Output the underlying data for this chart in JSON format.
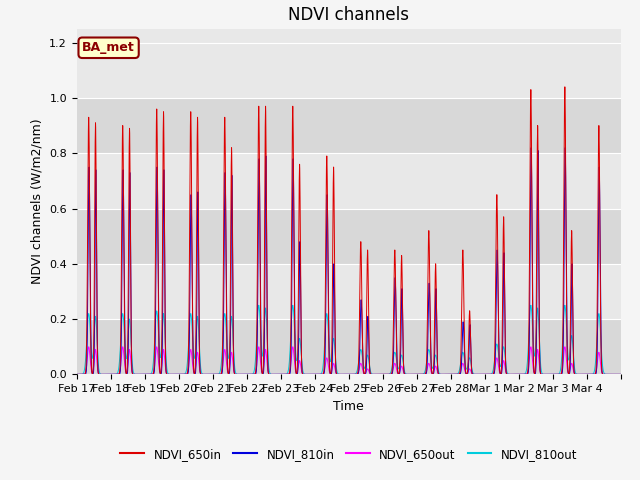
{
  "title": "NDVI channels",
  "ylabel": "NDVI channels (W/m2/nm)",
  "xlabel": "Time",
  "annotation": "BA_met",
  "ylim": [
    0,
    1.25
  ],
  "colors": {
    "NDVI_650in": "#dd0000",
    "NDVI_810in": "#0000dd",
    "NDVI_650out": "#ff00ff",
    "NDVI_810out": "#00ccdd"
  },
  "xtick_labels": [
    "Feb 17",
    "Feb 18",
    "Feb 19",
    "Feb 20",
    "Feb 21",
    "Feb 22",
    "Feb 23",
    "Feb 24",
    "Feb 25",
    "Feb 26",
    "Feb 27",
    "Feb 28",
    "Mar 1",
    "Mar 2",
    "Mar 3",
    "Mar 4"
  ],
  "background_color": "#e0e0e0",
  "band_colors": [
    "#d8d8d8",
    "#e8e8e8"
  ],
  "n_days": 16,
  "spike_peaks_650in": [
    0.93,
    0.9,
    0.96,
    0.95,
    0.93,
    0.97,
    0.97,
    0.79,
    0.48,
    0.45,
    0.52,
    0.45,
    0.65,
    1.03,
    1.04,
    0.9
  ],
  "spike_peaks_650in_2": [
    0.91,
    0.89,
    0.95,
    0.93,
    0.82,
    0.97,
    0.76,
    0.75,
    0.45,
    0.43,
    0.4,
    0.23,
    0.57,
    0.9,
    0.52,
    0.0
  ],
  "spike_peaks_810in": [
    0.75,
    0.74,
    0.75,
    0.65,
    0.73,
    0.78,
    0.78,
    0.65,
    0.27,
    0.35,
    0.33,
    0.19,
    0.45,
    0.82,
    0.82,
    0.75
  ],
  "spike_peaks_810in_2": [
    0.74,
    0.73,
    0.74,
    0.66,
    0.72,
    0.79,
    0.48,
    0.4,
    0.21,
    0.31,
    0.31,
    0.18,
    0.44,
    0.81,
    0.4,
    0.0
  ],
  "spike_peaks_650out": [
    0.1,
    0.1,
    0.1,
    0.09,
    0.09,
    0.1,
    0.1,
    0.06,
    0.04,
    0.04,
    0.04,
    0.04,
    0.06,
    0.1,
    0.1,
    0.08
  ],
  "spike_peaks_650out_2": [
    0.09,
    0.09,
    0.09,
    0.08,
    0.08,
    0.09,
    0.05,
    0.04,
    0.02,
    0.03,
    0.03,
    0.02,
    0.05,
    0.09,
    0.04,
    0.0
  ],
  "spike_peaks_810out": [
    0.22,
    0.22,
    0.23,
    0.22,
    0.22,
    0.25,
    0.25,
    0.22,
    0.09,
    0.08,
    0.09,
    0.08,
    0.11,
    0.25,
    0.25,
    0.22
  ],
  "spike_peaks_810out_2": [
    0.21,
    0.2,
    0.22,
    0.21,
    0.21,
    0.24,
    0.13,
    0.13,
    0.07,
    0.07,
    0.07,
    0.06,
    0.1,
    0.24,
    0.14,
    0.0
  ],
  "title_fontsize": 12,
  "axis_fontsize": 9,
  "tick_fontsize": 8,
  "figsize": [
    6.4,
    4.8
  ],
  "dpi": 100
}
